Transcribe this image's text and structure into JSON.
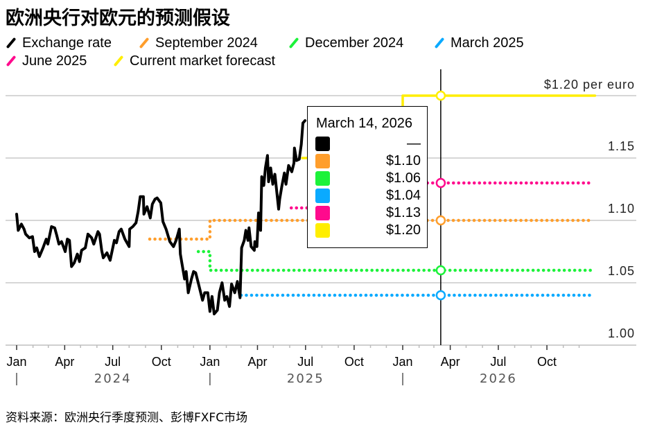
{
  "title": "欧洲央行对欧元的预测假设",
  "legend": [
    {
      "label": "Exchange rate",
      "color": "#000000"
    },
    {
      "label": "September 2024",
      "color": "#ff9e2c"
    },
    {
      "label": "December 2024",
      "color": "#1cf23a"
    },
    {
      "label": "March 2025",
      "color": "#0aaaff"
    },
    {
      "label": "June 2025",
      "color": "#ff0a8d"
    },
    {
      "label": "Current market forecast",
      "color": "#ffee00"
    }
  ],
  "tooltip": {
    "date": "March 14, 2026",
    "rows": [
      {
        "value": "—",
        "color": "#000000"
      },
      {
        "value": "$1.10",
        "color": "#ff9e2c"
      },
      {
        "value": "$1.06",
        "color": "#1cf23a"
      },
      {
        "value": "$1.04",
        "color": "#0aaaff"
      },
      {
        "value": "$1.13",
        "color": "#ff0a8d"
      },
      {
        "value": "$1.20",
        "color": "#ffee00"
      }
    ]
  },
  "footer": "资料来源：欧洲央行季度预测、彭博FXFC市场",
  "chart_data": {
    "type": "line",
    "title": "欧洲央行对欧元的预测假设",
    "xlim": [
      "2024-01-01",
      "2026-12-31"
    ],
    "ylim": [
      1.0,
      1.2
    ],
    "grid": true,
    "legend_placement": "top",
    "y_ticks": [
      {
        "value": 1.0,
        "label": "1.00"
      },
      {
        "value": 1.05,
        "label": "1.05"
      },
      {
        "value": 1.1,
        "label": "1.10"
      },
      {
        "value": 1.15,
        "label": "1.15"
      },
      {
        "value": 1.2,
        "label": "$1.20 per euro"
      }
    ],
    "x_ticks": [
      {
        "date": "2024-01-01",
        "label": "Jan"
      },
      {
        "date": "2024-04-01",
        "label": "Apr"
      },
      {
        "date": "2024-07-01",
        "label": "Jul"
      },
      {
        "date": "2024-10-01",
        "label": "Oct"
      },
      {
        "date": "2025-01-01",
        "label": "Jan"
      },
      {
        "date": "2025-04-01",
        "label": "Apr"
      },
      {
        "date": "2025-07-01",
        "label": "Jul"
      },
      {
        "date": "2025-10-01",
        "label": "Oct"
      },
      {
        "date": "2026-01-01",
        "label": "Jan"
      },
      {
        "date": "2026-04-01",
        "label": "Apr"
      },
      {
        "date": "2026-07-01",
        "label": "Jul"
      },
      {
        "date": "2026-10-01",
        "label": "Oct"
      }
    ],
    "years": [
      {
        "start": "2024-01-01",
        "center": "2024-07-01",
        "label": "2024"
      },
      {
        "start": "2025-01-01",
        "center": "2025-07-01",
        "label": "2025"
      },
      {
        "start": "2026-01-01",
        "center": "2026-07-01",
        "label": "2026"
      }
    ],
    "hover_date": "2026-03-14",
    "series": [
      {
        "name": "Exchange rate",
        "color": "#000000",
        "style": "solid",
        "points": [
          [
            "2024-01-01",
            1.105
          ],
          [
            "2024-01-04",
            1.092
          ],
          [
            "2024-01-10",
            1.097
          ],
          [
            "2024-01-15",
            1.093
          ],
          [
            "2024-01-18",
            1.089
          ],
          [
            "2024-01-25",
            1.086
          ],
          [
            "2024-01-31",
            1.087
          ],
          [
            "2024-02-04",
            1.075
          ],
          [
            "2024-02-08",
            1.078
          ],
          [
            "2024-02-13",
            1.071
          ],
          [
            "2024-02-20",
            1.078
          ],
          [
            "2024-02-26",
            1.085
          ],
          [
            "2024-02-29",
            1.081
          ],
          [
            "2024-03-07",
            1.095
          ],
          [
            "2024-03-13",
            1.094
          ],
          [
            "2024-03-17",
            1.088
          ],
          [
            "2024-03-21",
            1.081
          ],
          [
            "2024-03-26",
            1.083
          ],
          [
            "2024-04-02",
            1.075
          ],
          [
            "2024-04-06",
            1.085
          ],
          [
            "2024-04-10",
            1.084
          ],
          [
            "2024-04-14",
            1.063
          ],
          [
            "2024-04-19",
            1.066
          ],
          [
            "2024-04-25",
            1.073
          ],
          [
            "2024-04-29",
            1.067
          ],
          [
            "2024-05-03",
            1.076
          ],
          [
            "2024-05-10",
            1.078
          ],
          [
            "2024-05-15",
            1.089
          ],
          [
            "2024-05-22",
            1.086
          ],
          [
            "2024-05-26",
            1.081
          ],
          [
            "2024-06-03",
            1.091
          ],
          [
            "2024-06-06",
            1.089
          ],
          [
            "2024-06-10",
            1.076
          ],
          [
            "2024-06-13",
            1.07
          ],
          [
            "2024-06-20",
            1.074
          ],
          [
            "2024-06-26",
            1.068
          ],
          [
            "2024-07-04",
            1.084
          ],
          [
            "2024-07-08",
            1.082
          ],
          [
            "2024-07-13",
            1.091
          ],
          [
            "2024-07-17",
            1.093
          ],
          [
            "2024-07-24",
            1.085
          ],
          [
            "2024-08-01",
            1.079
          ],
          [
            "2024-08-02",
            1.093
          ],
          [
            "2024-08-08",
            1.095
          ],
          [
            "2024-08-14",
            1.098
          ],
          [
            "2024-08-18",
            1.107
          ],
          [
            "2024-08-22",
            1.119
          ],
          [
            "2024-08-28",
            1.119
          ],
          [
            "2024-08-29",
            1.105
          ],
          [
            "2024-09-04",
            1.111
          ],
          [
            "2024-09-10",
            1.102
          ],
          [
            "2024-09-14",
            1.113
          ],
          [
            "2024-09-19",
            1.117
          ],
          [
            "2024-09-23",
            1.118
          ],
          [
            "2024-09-30",
            1.114
          ],
          [
            "2024-10-04",
            1.099
          ],
          [
            "2024-10-10",
            1.093
          ],
          [
            "2024-10-17",
            1.083
          ],
          [
            "2024-10-24",
            1.079
          ],
          [
            "2024-10-29",
            1.084
          ],
          [
            "2024-11-04",
            1.093
          ],
          [
            "2024-11-06",
            1.073
          ],
          [
            "2024-11-14",
            1.053
          ],
          [
            "2024-11-17",
            1.059
          ],
          [
            "2024-11-21",
            1.042
          ],
          [
            "2024-11-27",
            1.053
          ],
          [
            "2024-12-01",
            1.059
          ],
          [
            "2024-12-05",
            1.058
          ],
          [
            "2024-12-11",
            1.048
          ],
          [
            "2024-12-18",
            1.036
          ],
          [
            "2024-12-22",
            1.042
          ],
          [
            "2024-12-28",
            1.042
          ],
          [
            "2025-01-01",
            1.027
          ],
          [
            "2025-01-05",
            1.039
          ],
          [
            "2025-01-09",
            1.025
          ],
          [
            "2025-01-15",
            1.028
          ],
          [
            "2025-01-19",
            1.042
          ],
          [
            "2025-01-24",
            1.05
          ],
          [
            "2025-01-29",
            1.036
          ],
          [
            "2025-02-02",
            1.039
          ],
          [
            "2025-02-07",
            1.031
          ],
          [
            "2025-02-11",
            1.049
          ],
          [
            "2025-02-17",
            1.042
          ],
          [
            "2025-02-22",
            1.051
          ],
          [
            "2025-02-27",
            1.038
          ],
          [
            "2025-03-02",
            1.078
          ],
          [
            "2025-03-07",
            1.084
          ],
          [
            "2025-03-10",
            1.092
          ],
          [
            "2025-03-14",
            1.084
          ],
          [
            "2025-03-16",
            1.094
          ],
          [
            "2025-03-20",
            1.079
          ],
          [
            "2025-03-26",
            1.076
          ],
          [
            "2025-03-27",
            1.083
          ],
          [
            "2025-03-31",
            1.079
          ],
          [
            "2025-04-03",
            1.106
          ],
          [
            "2025-04-07",
            1.092
          ],
          [
            "2025-04-09",
            1.135
          ],
          [
            "2025-04-13",
            1.128
          ],
          [
            "2025-04-16",
            1.142
          ],
          [
            "2025-04-20",
            1.152
          ],
          [
            "2025-04-22",
            1.131
          ],
          [
            "2025-04-26",
            1.142
          ],
          [
            "2025-04-30",
            1.129
          ],
          [
            "2025-05-04",
            1.137
          ],
          [
            "2025-05-11",
            1.109
          ],
          [
            "2025-05-13",
            1.117
          ],
          [
            "2025-05-17",
            1.127
          ],
          [
            "2025-05-22",
            1.138
          ],
          [
            "2025-05-25",
            1.129
          ],
          [
            "2025-05-30",
            1.144
          ],
          [
            "2025-06-05",
            1.139
          ],
          [
            "2025-06-09",
            1.146
          ],
          [
            "2025-06-10",
            1.158
          ],
          [
            "2025-06-14",
            1.148
          ],
          [
            "2025-06-19",
            1.149
          ],
          [
            "2025-06-23",
            1.161
          ],
          [
            "2025-06-26",
            1.178
          ],
          [
            "2025-06-30",
            1.18
          ]
        ]
      },
      {
        "name": "September 2024",
        "color": "#ff9e2c",
        "style": "dotted",
        "points": [
          [
            "2024-09-09",
            1.085
          ],
          [
            "2025-01-01",
            1.085
          ],
          [
            "2025-01-01",
            1.1
          ],
          [
            "2026-12-28",
            1.1
          ]
        ]
      },
      {
        "name": "December 2024",
        "color": "#1cf23a",
        "style": "dotted",
        "points": [
          [
            "2024-12-10",
            1.075
          ],
          [
            "2025-01-01",
            1.075
          ],
          [
            "2025-01-01",
            1.06
          ],
          [
            "2026-12-28",
            1.06
          ]
        ]
      },
      {
        "name": "March 2025",
        "color": "#0aaaff",
        "style": "dotted",
        "points": [
          [
            "2025-03-01",
            1.04
          ],
          [
            "2026-12-28",
            1.04
          ]
        ]
      },
      {
        "name": "June 2025",
        "color": "#ff0a8d",
        "style": "dotted",
        "points": [
          [
            "2025-06-04",
            1.11
          ],
          [
            "2026-01-01",
            1.11
          ],
          [
            "2026-01-01",
            1.13
          ],
          [
            "2026-12-24",
            1.13
          ]
        ]
      },
      {
        "name": "Current market forecast",
        "color": "#ffee00",
        "style": "solid",
        "points": [
          [
            "2025-06-25",
            1.15
          ],
          [
            "2026-01-01",
            1.15
          ],
          [
            "2026-01-01",
            1.2
          ],
          [
            "2026-12-31",
            1.2
          ]
        ]
      }
    ],
    "hover_values": [
      null,
      1.1,
      1.06,
      1.04,
      1.13,
      1.2
    ]
  }
}
